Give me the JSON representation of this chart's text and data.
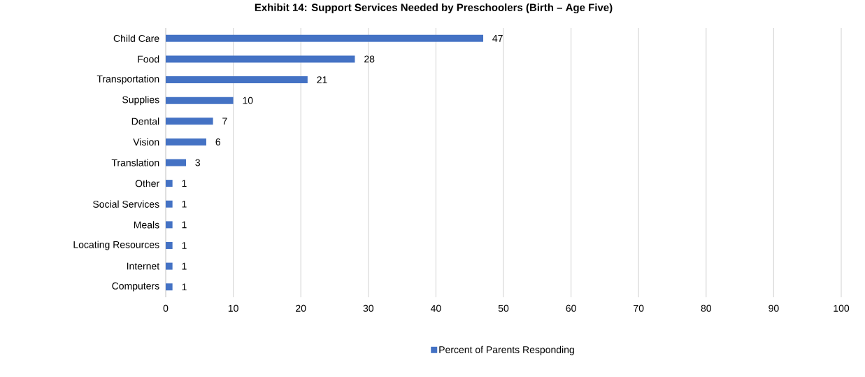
{
  "chart_data": {
    "type": "bar",
    "orientation": "horizontal",
    "title": "Exhibit 14: Support Services Needed by Preschoolers (Birth – Age Five)",
    "categories": [
      "Child Care",
      "Food",
      "Transportation",
      "Supplies",
      "Dental",
      "Vision",
      "Translation",
      "Other",
      "Social Services",
      "Meals",
      "Locating Resources",
      "Internet",
      "Computers"
    ],
    "series": [
      {
        "name": "Percent of Parents Responding",
        "color": "#4472c4",
        "values": [
          47,
          28,
          21,
          10,
          7,
          6,
          3,
          1,
          1,
          1,
          1,
          1,
          1
        ]
      }
    ],
    "xlim": [
      0,
      100
    ],
    "xticks": [
      0,
      10,
      20,
      30,
      40,
      50,
      60,
      70,
      80,
      90,
      100
    ],
    "grid": "x",
    "legend": "bottom",
    "data_labels": true
  }
}
